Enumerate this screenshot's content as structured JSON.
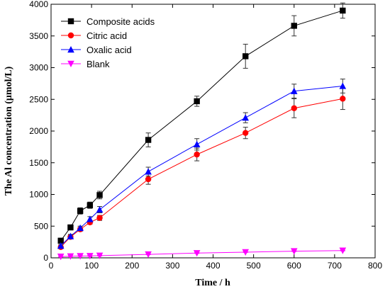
{
  "chart_data": {
    "type": "line",
    "title": "",
    "xlabel": "Time / h",
    "ylabel": "The Al concentration (μmol/L)",
    "xlim": [
      0,
      800
    ],
    "ylim": [
      0,
      4000
    ],
    "xticks": [
      0,
      100,
      200,
      300,
      400,
      500,
      600,
      700,
      800
    ],
    "yticks": [
      0,
      500,
      1000,
      1500,
      2000,
      2500,
      3000,
      3500,
      4000
    ],
    "grid": false,
    "legend_position": "top-left",
    "series": [
      {
        "name": "Composite acids",
        "color": "#000000",
        "marker": "square",
        "x": [
          24,
          48,
          72,
          96,
          120,
          240,
          360,
          480,
          600,
          720
        ],
        "y": [
          270,
          480,
          740,
          830,
          990,
          1860,
          2470,
          3180,
          3660,
          3900
        ],
        "err": [
          40,
          40,
          50,
          50,
          60,
          110,
          80,
          190,
          160,
          120
        ]
      },
      {
        "name": "Citric acid",
        "color": "#ff0000",
        "marker": "circle",
        "x": [
          24,
          48,
          72,
          96,
          120,
          240,
          360,
          480,
          600,
          720
        ],
        "y": [
          170,
          330,
          450,
          560,
          630,
          1240,
          1630,
          1970,
          2360,
          2510
        ],
        "err": [
          20,
          30,
          30,
          30,
          40,
          80,
          100,
          90,
          150,
          170
        ]
      },
      {
        "name": "Oxalic acid",
        "color": "#0000ff",
        "marker": "triangle-up",
        "x": [
          24,
          48,
          72,
          96,
          120,
          240,
          360,
          480,
          600,
          720
        ],
        "y": [
          190,
          340,
          470,
          610,
          760,
          1360,
          1790,
          2210,
          2630,
          2710
        ],
        "err": [
          20,
          30,
          30,
          40,
          50,
          70,
          90,
          80,
          110,
          110
        ]
      },
      {
        "name": "Blank",
        "color": "#ff00ff",
        "marker": "triangle-down",
        "x": [
          24,
          48,
          72,
          96,
          120,
          240,
          360,
          480,
          600,
          720
        ],
        "y": [
          20,
          25,
          28,
          30,
          35,
          55,
          75,
          90,
          105,
          115
        ],
        "err": [
          5,
          5,
          5,
          5,
          5,
          5,
          5,
          5,
          5,
          5
        ]
      }
    ]
  }
}
